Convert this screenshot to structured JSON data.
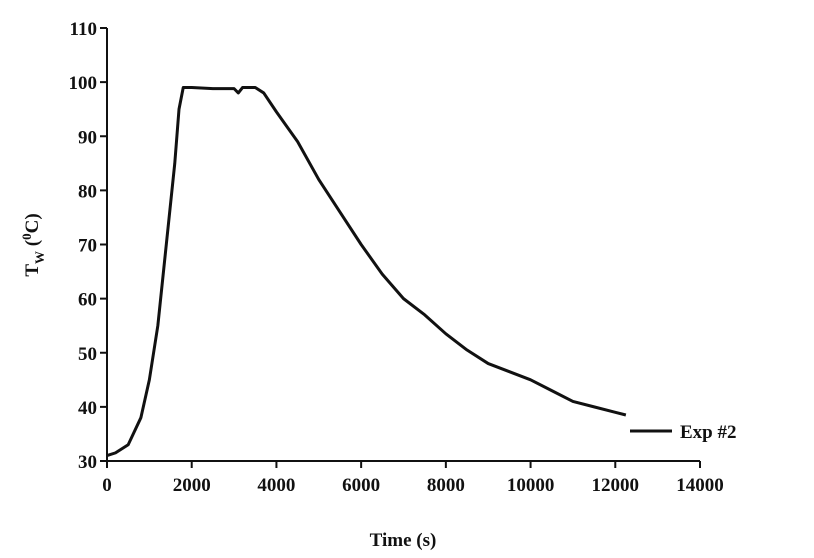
{
  "chart_data": {
    "type": "line",
    "x_label": "Time (s)",
    "y_label_parts": [
      "T",
      "W",
      " (",
      "0",
      "C)"
    ],
    "x": [
      0,
      200,
      500,
      800,
      1000,
      1200,
      1400,
      1600,
      1700,
      1800,
      2000,
      2500,
      3000,
      3100,
      3200,
      3500,
      3700,
      4000,
      4500,
      5000,
      5500,
      6000,
      6500,
      7000,
      7500,
      8000,
      8500,
      9000,
      9500,
      10000,
      10500,
      11000,
      11500,
      12000,
      12250
    ],
    "series": [
      {
        "name": "Exp #2",
        "color": "#111111",
        "values": [
          31,
          31.5,
          33,
          38,
          45,
          55,
          70,
          85,
          95,
          99,
          99,
          98.8,
          98.8,
          98,
          99,
          99,
          98,
          94.5,
          89,
          82,
          76,
          70,
          64.5,
          60,
          57,
          53.5,
          50.5,
          48,
          46.5,
          45,
          43,
          41,
          40,
          39,
          38.5
        ]
      }
    ],
    "xlim": [
      0,
      14000
    ],
    "xticks": [
      0,
      2000,
      4000,
      6000,
      8000,
      10000,
      12000,
      14000
    ],
    "ylim": [
      30,
      110
    ],
    "yticks": [
      30,
      40,
      50,
      60,
      70,
      80,
      90,
      100,
      110
    ],
    "grid": false,
    "legend": "right"
  }
}
